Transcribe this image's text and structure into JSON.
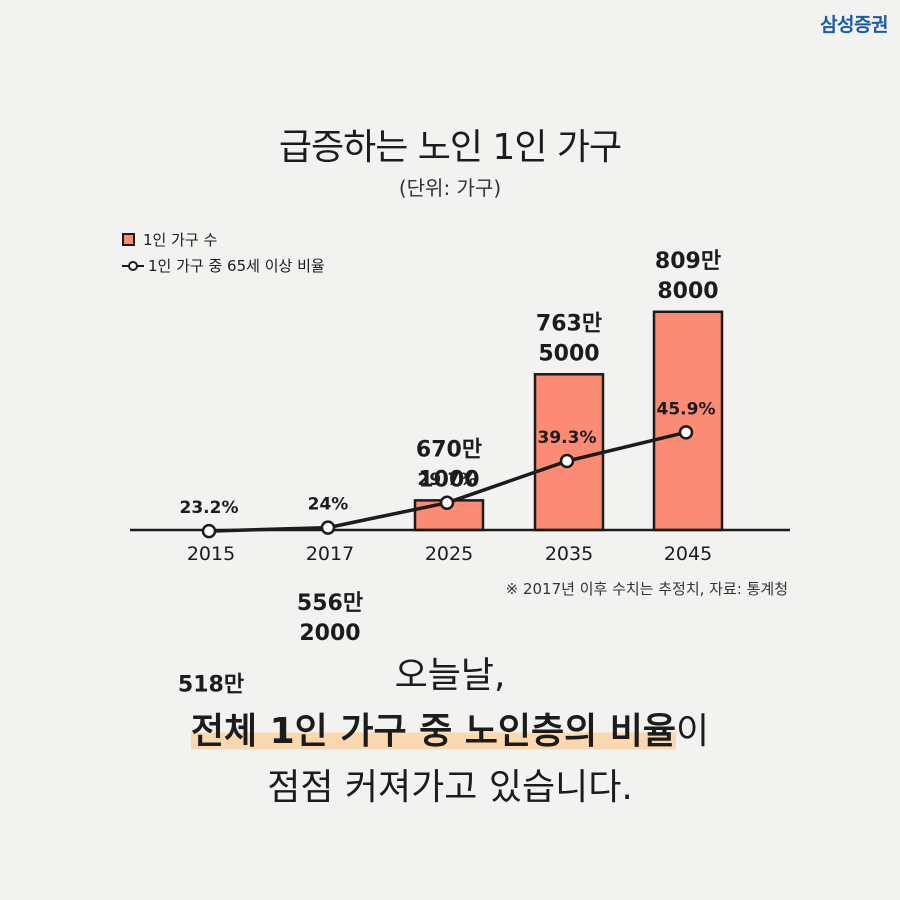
{
  "brand": "삼성증권",
  "chart_data": {
    "type": "bar",
    "title": "급증하는 노인 1인 가구",
    "subtitle": "(단위: 가구)",
    "categories": [
      "2015",
      "2017",
      "2025",
      "2035",
      "2045"
    ],
    "series": [
      {
        "name": "1인 가구 수",
        "type": "bar",
        "values": [
          5180000,
          5562000,
          6701000,
          7635000,
          8098000
        ],
        "labels": [
          [
            "518만"
          ],
          [
            "556만",
            "2000"
          ],
          [
            "670만",
            "1000"
          ],
          [
            "763만",
            "5000"
          ],
          [
            "809만",
            "8000"
          ]
        ]
      },
      {
        "name": "1인 가구 중 65세 이상 비율",
        "type": "line",
        "values": [
          23.2,
          24,
          29.7,
          39.3,
          45.9
        ],
        "labels": [
          "23.2%",
          "24%",
          "29.7%",
          "39.3%",
          "45.9%"
        ]
      }
    ],
    "colors": {
      "bar": "#fb8b75",
      "line": "#1c1c1c",
      "highlight": "#fcd8b0"
    },
    "grid": false,
    "legend": "top-left"
  },
  "source_note": "※ 2017년 이후 수치는 추정치, 자료: 통계청",
  "caption": {
    "line1": "오늘날,",
    "line2_highlight": "전체 1인 가구 중 노인층의 비율",
    "line2_rest": "이",
    "line3": "점점 커져가고 있습니다."
  }
}
